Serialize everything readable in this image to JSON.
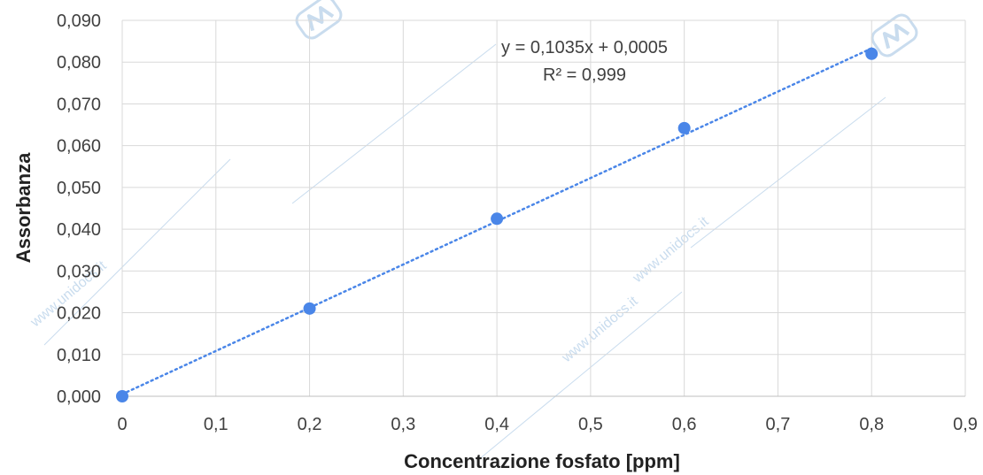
{
  "chart_data": {
    "type": "scatter",
    "title": "",
    "xlabel": "Concentrazione fosfato [ppm]",
    "ylabel": "Assorbanza",
    "xlim": [
      0,
      0.9
    ],
    "ylim": [
      0,
      0.09
    ],
    "x_ticks": [
      0,
      0.1,
      0.2,
      0.3,
      0.4,
      0.5,
      0.6,
      0.7,
      0.8,
      0.9
    ],
    "x_tick_labels": [
      "0",
      "0,1",
      "0,2",
      "0,3",
      "0,4",
      "0,5",
      "0,6",
      "0,7",
      "0,8",
      "0,9"
    ],
    "y_ticks": [
      0,
      0.01,
      0.02,
      0.03,
      0.04,
      0.05,
      0.06,
      0.07,
      0.08,
      0.09
    ],
    "y_tick_labels": [
      "0,000",
      "0,010",
      "0,020",
      "0,030",
      "0,040",
      "0,050",
      "0,060",
      "0,070",
      "0,080",
      "0,090"
    ],
    "grid": true,
    "series": [
      {
        "x": [
          0,
          0.2,
          0.4,
          0.6,
          0.8
        ],
        "y": [
          0.0,
          0.021,
          0.0425,
          0.0642,
          0.082
        ],
        "color": "#4a86e8"
      }
    ],
    "trendline": {
      "slope": 0.1035,
      "intercept": 0.0005,
      "x_range": [
        0,
        0.8
      ],
      "style": "dotted",
      "color": "#4a86e8",
      "equation_label": "y = 0,1035x + 0,0005",
      "r2_label": "R² = 0,999"
    },
    "watermark": {
      "text": "www.unidocs.it",
      "color": "#c9dcee"
    }
  }
}
